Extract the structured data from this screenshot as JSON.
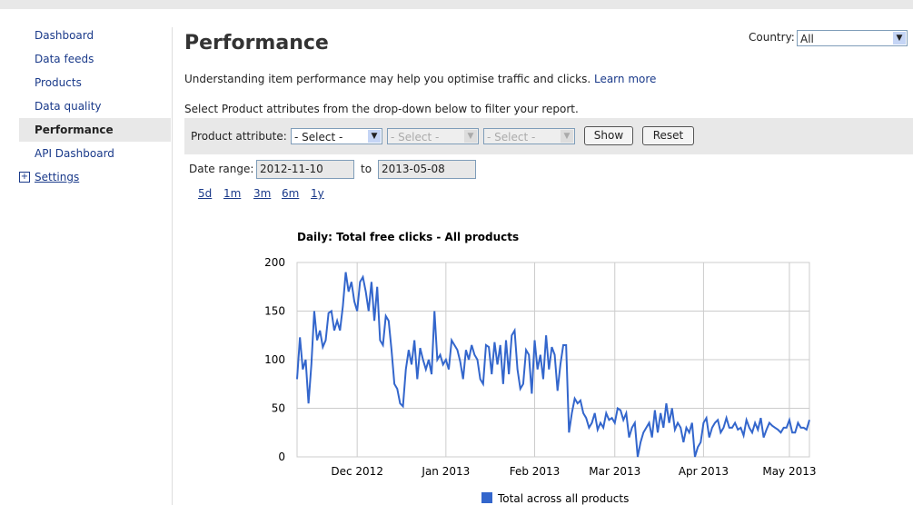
{
  "sidebar": {
    "items": [
      "Dashboard",
      "Data feeds",
      "Products",
      "Data quality",
      "Performance",
      "API Dashboard",
      "Settings"
    ]
  },
  "header": {
    "title": "Performance",
    "country_label": "Country:",
    "country_value": "All"
  },
  "intro": {
    "text": "Understanding item performance may help you optimise traffic and clicks.",
    "link": "Learn more"
  },
  "filter": {
    "instruction": "Select Product attributes from the drop-down below to filter your report.",
    "label": "Product attribute:",
    "selects": [
      "- Select -",
      "- Select -",
      "- Select -"
    ],
    "buttons": [
      "Show",
      "Reset"
    ]
  },
  "date_range": {
    "label": "Date range:",
    "from": "2012-11-10",
    "separator": "to",
    "to": "2013-05-08"
  },
  "periods": [
    "5d",
    "1m",
    "3m",
    "6m",
    "1y"
  ],
  "chart_data": {
    "type": "line",
    "title": "Daily: Total free clicks - All products",
    "series": [
      {
        "name": "Total across all products",
        "color": "#3366cc",
        "values": [
          80,
          123,
          90,
          100,
          55,
          95,
          150,
          120,
          130,
          113,
          120,
          148,
          150,
          130,
          140,
          130,
          155,
          190,
          170,
          180,
          160,
          150,
          180,
          185,
          170,
          150,
          180,
          140,
          175,
          120,
          115,
          145,
          140,
          110,
          75,
          70,
          55,
          52,
          90,
          110,
          95,
          120,
          80,
          112,
          100,
          90,
          100,
          85,
          150,
          100,
          105,
          95,
          100,
          90,
          120,
          115,
          110,
          98,
          80,
          110,
          100,
          115,
          105,
          100,
          80,
          75,
          115,
          113,
          85,
          118,
          95,
          115,
          75,
          120,
          85,
          125,
          130,
          90,
          70,
          75,
          110,
          105,
          65,
          120,
          90,
          105,
          80,
          125,
          90,
          113,
          105,
          68,
          95,
          115,
          115,
          25,
          45,
          60,
          55,
          58,
          45,
          40,
          30,
          35,
          45,
          28,
          35,
          30,
          45,
          38,
          40,
          35,
          50,
          48,
          38,
          45,
          20,
          30,
          35,
          0,
          15,
          25,
          30,
          35,
          20,
          48,
          25,
          45,
          30,
          55,
          35,
          50,
          28,
          35,
          30,
          15,
          30,
          25,
          35,
          0,
          10,
          15,
          35,
          40,
          20,
          30,
          35,
          38,
          25,
          30,
          40,
          30,
          30,
          35,
          28,
          30,
          22,
          38,
          30,
          25,
          35,
          28,
          40,
          20,
          28,
          35,
          32,
          30,
          28,
          25,
          30,
          30,
          38,
          25,
          25,
          35,
          30,
          30,
          28,
          38
        ]
      }
    ],
    "xlim": [
      0,
      179
    ],
    "xticks": [
      {
        "value": 21,
        "label": "Dec 2012"
      },
      {
        "value": 52,
        "label": "Jan 2013"
      },
      {
        "value": 83,
        "label": "Feb 2013"
      },
      {
        "value": 111,
        "label": "Mar 2013"
      },
      {
        "value": 142,
        "label": "Apr 2013"
      },
      {
        "value": 172,
        "label": "May 2013"
      }
    ],
    "ylim": [
      0,
      200
    ],
    "yticks": [
      0,
      50,
      100,
      150,
      200
    ],
    "grid": true
  }
}
